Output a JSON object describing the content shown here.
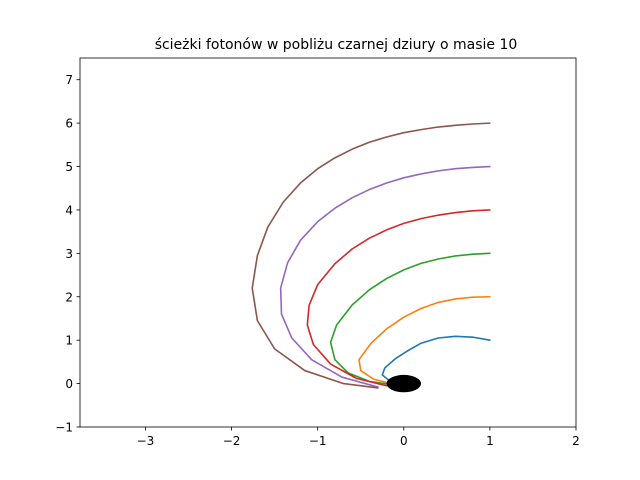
{
  "chart_data": {
    "type": "line",
    "title": "ścieżki fotonów w pobliżu czarnej dziury o masie 10",
    "xlabel": "",
    "ylabel": "",
    "xlim": [
      -3.76,
      2.0
    ],
    "ylim": [
      -1.0,
      7.5
    ],
    "grid": false,
    "x_ticks": [
      {
        "value": -3,
        "label": "−3"
      },
      {
        "value": -2,
        "label": "−2"
      },
      {
        "value": -1,
        "label": "−1"
      },
      {
        "value": 0,
        "label": "0"
      },
      {
        "value": 1,
        "label": "1"
      },
      {
        "value": 2,
        "label": "2"
      }
    ],
    "y_ticks": [
      {
        "value": -1,
        "label": "−1"
      },
      {
        "value": 0,
        "label": "0"
      },
      {
        "value": 1,
        "label": "1"
      },
      {
        "value": 2,
        "label": "2"
      },
      {
        "value": 3,
        "label": "3"
      },
      {
        "value": 4,
        "label": "4"
      },
      {
        "value": 5,
        "label": "5"
      },
      {
        "value": 6,
        "label": "6"
      },
      {
        "value": 7,
        "label": "7"
      }
    ],
    "black_hole": {
      "x": 0,
      "y": 0,
      "rx": 0.2,
      "ry": 0.2,
      "color": "#000000"
    },
    "series": [
      {
        "color": "#1f77b4",
        "points": [
          [
            1,
            1
          ],
          [
            0.8,
            1.07
          ],
          [
            0.6,
            1.09
          ],
          [
            0.4,
            1.05
          ],
          [
            0.2,
            0.93
          ],
          [
            0.05,
            0.76
          ],
          [
            -0.1,
            0.57
          ],
          [
            -0.22,
            0.36
          ],
          [
            -0.25,
            0.2
          ],
          [
            -0.17,
            0.07
          ],
          [
            -0.05,
            0.0
          ]
        ]
      },
      {
        "color": "#ff7f0e",
        "points": [
          [
            1,
            2
          ],
          [
            0.8,
            1.99
          ],
          [
            0.6,
            1.95
          ],
          [
            0.4,
            1.87
          ],
          [
            0.2,
            1.73
          ],
          [
            0.0,
            1.53
          ],
          [
            -0.2,
            1.26
          ],
          [
            -0.38,
            0.93
          ],
          [
            -0.52,
            0.55
          ],
          [
            -0.5,
            0.3
          ],
          [
            -0.35,
            0.1
          ],
          [
            -0.15,
            0.0
          ]
        ]
      },
      {
        "color": "#2ca02c",
        "points": [
          [
            1,
            3
          ],
          [
            0.8,
            2.98
          ],
          [
            0.6,
            2.94
          ],
          [
            0.4,
            2.87
          ],
          [
            0.2,
            2.77
          ],
          [
            0.0,
            2.62
          ],
          [
            -0.2,
            2.42
          ],
          [
            -0.4,
            2.16
          ],
          [
            -0.6,
            1.81
          ],
          [
            -0.78,
            1.35
          ],
          [
            -0.85,
            0.95
          ],
          [
            -0.8,
            0.55
          ],
          [
            -0.65,
            0.25
          ],
          [
            -0.4,
            0.05
          ],
          [
            -0.15,
            -0.02
          ]
        ]
      },
      {
        "color": "#d62728",
        "points": [
          [
            1,
            4
          ],
          [
            0.8,
            3.98
          ],
          [
            0.6,
            3.94
          ],
          [
            0.4,
            3.88
          ],
          [
            0.2,
            3.8
          ],
          [
            0.0,
            3.69
          ],
          [
            -0.2,
            3.54
          ],
          [
            -0.4,
            3.35
          ],
          [
            -0.6,
            3.1
          ],
          [
            -0.8,
            2.76
          ],
          [
            -1.0,
            2.28
          ],
          [
            -1.1,
            1.8
          ],
          [
            -1.12,
            1.35
          ],
          [
            -1.05,
            0.9
          ],
          [
            -0.85,
            0.45
          ],
          [
            -0.55,
            0.12
          ],
          [
            -0.2,
            -0.05
          ]
        ]
      },
      {
        "color": "#9467bd",
        "points": [
          [
            1,
            5
          ],
          [
            0.8,
            4.98
          ],
          [
            0.6,
            4.95
          ],
          [
            0.4,
            4.9
          ],
          [
            0.2,
            4.83
          ],
          [
            0.0,
            4.74
          ],
          [
            -0.2,
            4.62
          ],
          [
            -0.4,
            4.47
          ],
          [
            -0.6,
            4.28
          ],
          [
            -0.8,
            4.04
          ],
          [
            -1.0,
            3.73
          ],
          [
            -1.2,
            3.3
          ],
          [
            -1.35,
            2.78
          ],
          [
            -1.43,
            2.2
          ],
          [
            -1.42,
            1.6
          ],
          [
            -1.3,
            1.05
          ],
          [
            -1.07,
            0.55
          ],
          [
            -0.72,
            0.15
          ],
          [
            -0.3,
            -0.08
          ]
        ]
      },
      {
        "color": "#8c564b",
        "points": [
          [
            1,
            6
          ],
          [
            0.8,
            5.98
          ],
          [
            0.6,
            5.95
          ],
          [
            0.4,
            5.91
          ],
          [
            0.2,
            5.85
          ],
          [
            0.0,
            5.78
          ],
          [
            -0.2,
            5.68
          ],
          [
            -0.4,
            5.56
          ],
          [
            -0.6,
            5.4
          ],
          [
            -0.8,
            5.2
          ],
          [
            -1.0,
            4.95
          ],
          [
            -1.2,
            4.62
          ],
          [
            -1.4,
            4.18
          ],
          [
            -1.58,
            3.6
          ],
          [
            -1.7,
            2.95
          ],
          [
            -1.76,
            2.2
          ],
          [
            -1.7,
            1.45
          ],
          [
            -1.5,
            0.8
          ],
          [
            -1.15,
            0.3
          ],
          [
            -0.7,
            0.0
          ],
          [
            -0.3,
            -0.1
          ]
        ]
      }
    ]
  }
}
